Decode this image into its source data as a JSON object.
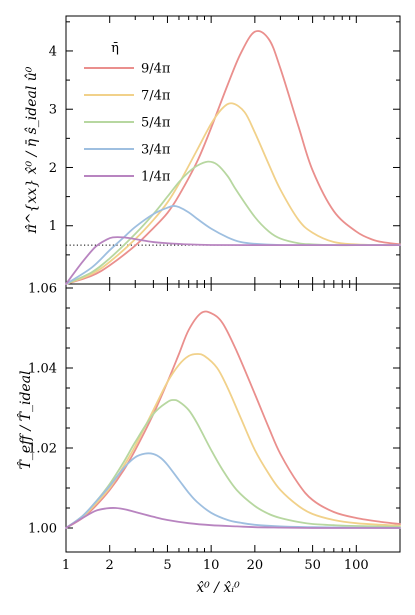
{
  "chart_data": [
    {
      "type": "line",
      "xscale": "log",
      "xlim": [
        1,
        200
      ],
      "ylim": [
        0,
        4.6
      ],
      "yticks": [
        1,
        2,
        3,
        4
      ],
      "ylabel": "π̂^{xx} x̂⁰ / η̄ ŝ_ideal û⁰",
      "reference_line": {
        "y": 0.667,
        "style": "dotted"
      },
      "legend_title": "η̄",
      "legend_position": "top-left",
      "series": [
        {
          "name": "9/4π",
          "color": "#ea8f8d",
          "x": [
            1,
            1.5,
            2,
            3,
            4,
            5,
            6,
            8,
            10,
            13,
            16,
            20,
            25,
            30,
            40,
            50,
            70,
            100,
            130,
            160,
            200
          ],
          "y": [
            0,
            0.14,
            0.32,
            0.66,
            0.96,
            1.22,
            1.52,
            2.1,
            2.68,
            3.42,
            3.96,
            4.33,
            4.2,
            3.7,
            2.7,
            1.95,
            1.25,
            0.9,
            0.76,
            0.71,
            0.68
          ]
        },
        {
          "name": "7/4π",
          "color": "#f1d18a",
          "x": [
            1,
            1.5,
            2,
            3,
            4,
            5,
            6,
            8,
            10,
            12,
            14,
            17,
            20,
            25,
            30,
            40,
            50,
            70,
            100,
            150,
            200
          ],
          "y": [
            0,
            0.17,
            0.38,
            0.77,
            1.1,
            1.4,
            1.72,
            2.3,
            2.75,
            3.02,
            3.1,
            2.95,
            2.6,
            2.05,
            1.62,
            1.1,
            0.88,
            0.72,
            0.68,
            0.667,
            0.667
          ]
        },
        {
          "name": "5/4π",
          "color": "#b7d7a0",
          "x": [
            1,
            1.5,
            2,
            3,
            4,
            5,
            6,
            7,
            8,
            9.5,
            11,
            13,
            15,
            20,
            25,
            30,
            40,
            50,
            70,
            100,
            200
          ],
          "y": [
            0,
            0.2,
            0.44,
            0.86,
            1.2,
            1.5,
            1.75,
            1.92,
            2.03,
            2.1,
            2.05,
            1.85,
            1.6,
            1.15,
            0.9,
            0.78,
            0.7,
            0.68,
            0.667,
            0.667,
            0.667
          ]
        },
        {
          "name": "3/4π",
          "color": "#9ebfe0",
          "x": [
            1,
            1.5,
            2,
            2.5,
            3,
            4,
            5,
            5.5,
            6,
            7,
            8,
            10,
            13,
            16,
            20,
            30,
            50,
            100,
            200
          ],
          "y": [
            0,
            0.28,
            0.58,
            0.8,
            0.98,
            1.2,
            1.31,
            1.34,
            1.32,
            1.23,
            1.12,
            0.95,
            0.8,
            0.72,
            0.69,
            0.67,
            0.667,
            0.667,
            0.667
          ]
        },
        {
          "name": "1/4π",
          "color": "#b884c0",
          "x": [
            1,
            1.3,
            1.6,
            1.9,
            2.1,
            2.5,
            3,
            4,
            5,
            7,
            10,
            20,
            50,
            100,
            200
          ],
          "y": [
            0,
            0.38,
            0.64,
            0.76,
            0.8,
            0.8,
            0.77,
            0.72,
            0.7,
            0.68,
            0.67,
            0.667,
            0.667,
            0.667,
            0.667
          ]
        }
      ]
    },
    {
      "type": "line",
      "xscale": "log",
      "xlim": [
        1,
        200
      ],
      "ylim": [
        0.994,
        1.061
      ],
      "yticks": [
        1.0,
        1.02,
        1.04,
        1.06
      ],
      "ytick_labels": [
        "1.00",
        "1.02",
        "1.04",
        "1.06"
      ],
      "xticks": [
        1,
        2,
        5,
        10,
        20,
        50,
        100
      ],
      "xtick_labels": [
        "1",
        "2",
        "5",
        "10",
        "20",
        "50",
        "100"
      ],
      "ylabel": "T̂_eff / T̂_ideal",
      "xlabel": "x̂⁰ / x̂ᵢ⁰",
      "series": [
        {
          "name": "9/4π",
          "color": "#ea8f8d",
          "x": [
            1,
            1.3,
            1.6,
            2,
            2.5,
            3,
            4,
            5,
            6,
            7,
            8.5,
            10,
            12,
            15,
            20,
            25,
            30,
            40,
            50,
            70,
            100,
            150,
            200
          ],
          "y": [
            1.0,
            1.0025,
            1.0055,
            1.0095,
            1.0145,
            1.0195,
            1.0285,
            1.0365,
            1.0435,
            1.0495,
            1.0537,
            1.0537,
            1.0512,
            1.0442,
            1.0335,
            1.025,
            1.0185,
            1.011,
            1.007,
            1.004,
            1.0025,
            1.0015,
            1.001
          ]
        },
        {
          "name": "7/4π",
          "color": "#f1d18a",
          "x": [
            1,
            1.3,
            1.6,
            2,
            2.5,
            3,
            4,
            5,
            6,
            7,
            8,
            9,
            11,
            13,
            16,
            20,
            25,
            30,
            40,
            50,
            70,
            100,
            150,
            200
          ],
          "y": [
            1.0,
            1.0028,
            1.006,
            1.01,
            1.0155,
            1.0205,
            1.0295,
            1.0365,
            1.0408,
            1.043,
            1.0435,
            1.043,
            1.04,
            1.035,
            1.0275,
            1.0195,
            1.0135,
            1.0095,
            1.0055,
            1.0035,
            1.002,
            1.0012,
            1.0008,
            1.0006
          ]
        },
        {
          "name": "5/4π",
          "color": "#b7d7a0",
          "x": [
            1,
            1.3,
            1.6,
            2,
            2.5,
            3,
            4,
            5,
            5.5,
            6,
            7,
            8,
            10,
            12,
            15,
            20,
            25,
            30,
            40,
            50,
            70,
            100,
            200
          ],
          "y": [
            1.0,
            1.003,
            1.0065,
            1.011,
            1.0165,
            1.0215,
            1.0285,
            1.0315,
            1.032,
            1.0316,
            1.0295,
            1.0262,
            1.0195,
            1.0145,
            1.0095,
            1.0055,
            1.0035,
            1.0025,
            1.0015,
            1.001,
            1.0007,
            1.0005,
            1.0003
          ]
        },
        {
          "name": "3/4π",
          "color": "#9ebfe0",
          "x": [
            1,
            1.3,
            1.6,
            2,
            2.5,
            3,
            3.5,
            4,
            4.5,
            5,
            6,
            7,
            8,
            10,
            13,
            16,
            20,
            30,
            50,
            100,
            200
          ],
          "y": [
            1.0,
            1.003,
            1.0065,
            1.0105,
            1.015,
            1.0177,
            1.0186,
            1.0185,
            1.0175,
            1.0158,
            1.012,
            1.0088,
            1.0065,
            1.0038,
            1.002,
            1.0013,
            1.0008,
            1.0004,
            1.0002,
            1.0001,
            1.0
          ]
        },
        {
          "name": "1/4π",
          "color": "#b884c0",
          "x": [
            1,
            1.3,
            1.6,
            1.9,
            2.2,
            2.6,
            3,
            4,
            5,
            7,
            10,
            15,
            20,
            30,
            50,
            100,
            200
          ],
          "y": [
            1.0,
            1.0025,
            1.0043,
            1.0049,
            1.005,
            1.0046,
            1.004,
            1.0028,
            1.002,
            1.0012,
            1.0007,
            1.0004,
            1.0002,
            1.0001,
            1.0,
            1.0,
            1.0
          ]
        }
      ]
    }
  ]
}
